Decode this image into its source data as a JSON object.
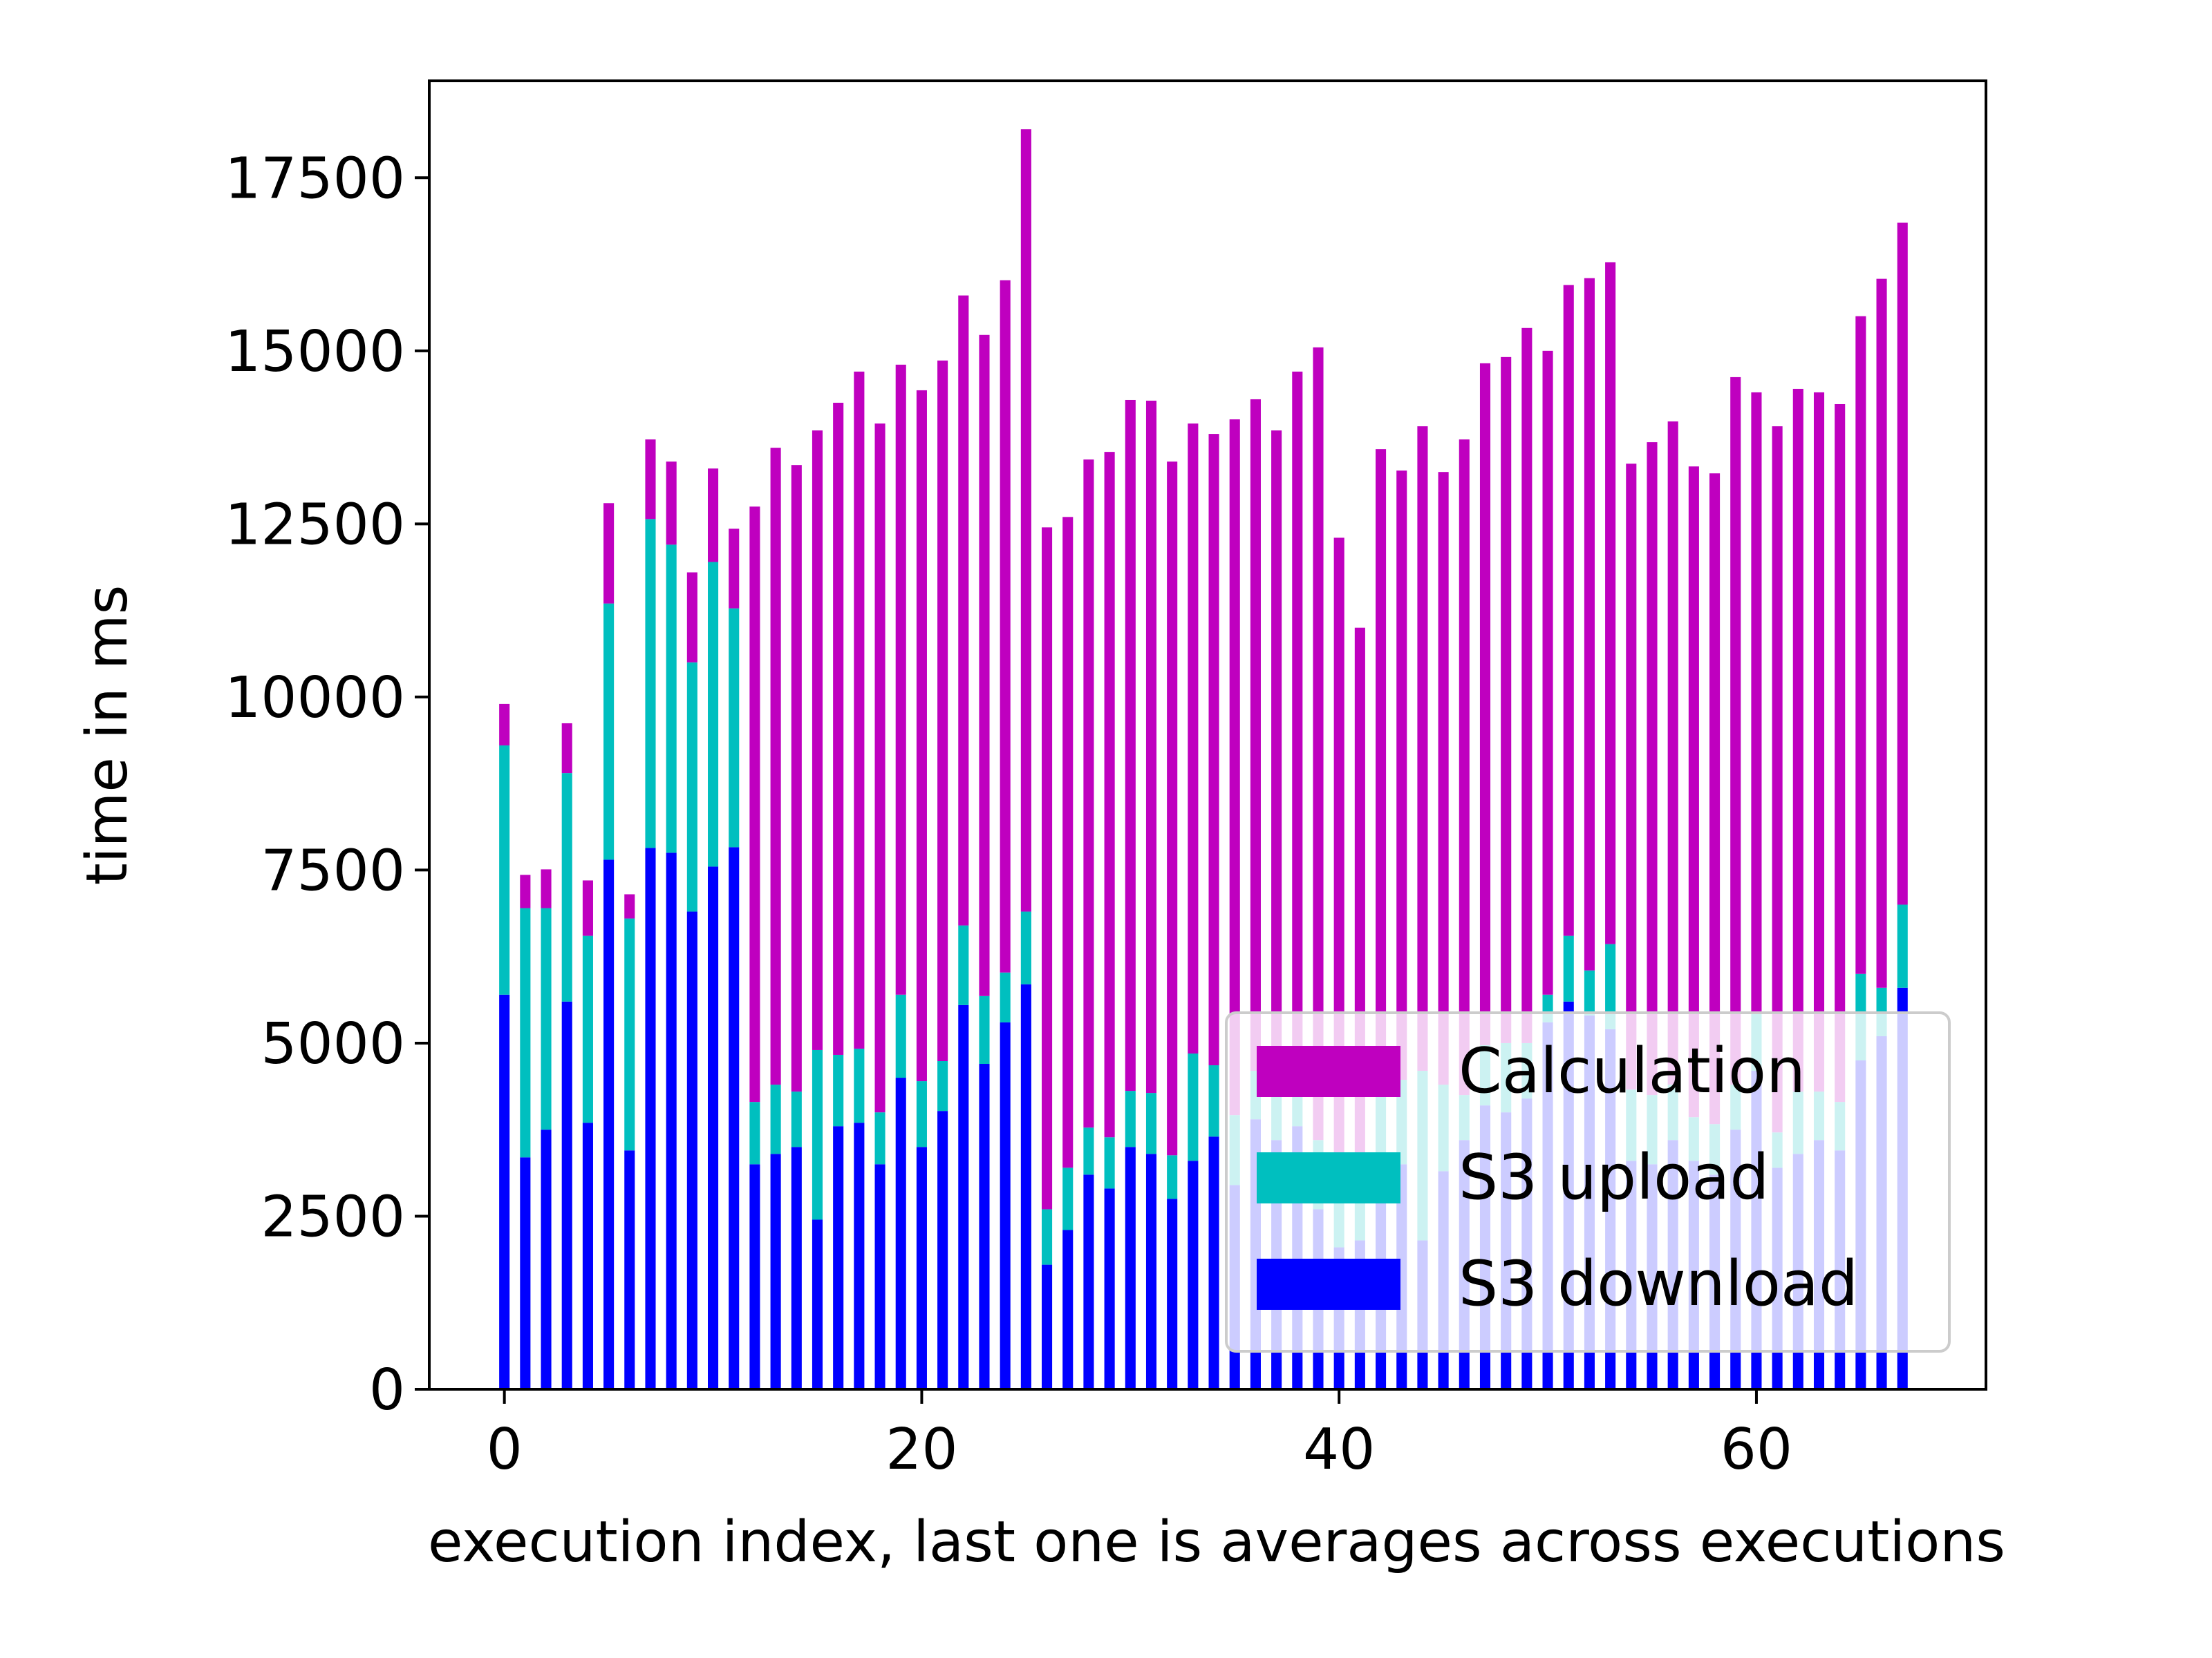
{
  "chart_data": {
    "type": "bar",
    "stacked": true,
    "title": "",
    "xlabel": "execution index, last one is averages across executions",
    "ylabel": "time in ms",
    "x": [
      0,
      1,
      2,
      3,
      4,
      5,
      6,
      7,
      8,
      9,
      10,
      11,
      12,
      13,
      14,
      15,
      16,
      17,
      18,
      19,
      20,
      21,
      22,
      23,
      24,
      25,
      26,
      27,
      28,
      29,
      30,
      31,
      32,
      33,
      34,
      35,
      36,
      37,
      38,
      39,
      40,
      41,
      42,
      43,
      44,
      45,
      46,
      47,
      48,
      49,
      50,
      51,
      52,
      53,
      54,
      55,
      56,
      57,
      58,
      59,
      60,
      61,
      62,
      63,
      64,
      65,
      66,
      67
    ],
    "xlim": [
      -3.6,
      71
    ],
    "ylim": [
      0,
      18900
    ],
    "x_ticks": [
      0,
      20,
      40,
      60
    ],
    "y_ticks": [
      0,
      2500,
      5000,
      7500,
      10000,
      12500,
      15000,
      17500
    ],
    "grid": false,
    "legend": {
      "position": "lower-right",
      "order": [
        "Calculation",
        "S3 upload",
        "S3 download"
      ]
    },
    "series": [
      {
        "name": "S3 download",
        "color": "#0000ff",
        "values": [
          5700,
          3350,
          3750,
          5600,
          3850,
          7650,
          3450,
          7820,
          7750,
          6900,
          7550,
          7830,
          3250,
          3400,
          3500,
          2450,
          3800,
          3850,
          3250,
          4500,
          3500,
          4020,
          5550,
          4700,
          5300,
          5850,
          1800,
          2300,
          3100,
          2900,
          3500,
          3400,
          2750,
          3300,
          3650,
          2950,
          3900,
          3600,
          3800,
          2600,
          2050,
          2150,
          3300,
          3250,
          2150,
          3150,
          3600,
          4100,
          4000,
          4200,
          5300,
          5600,
          5400,
          5200,
          3300,
          3250,
          3600,
          3300,
          3100,
          3750,
          4600,
          3200,
          3400,
          3600,
          3450,
          4750,
          5100,
          5800
        ]
      },
      {
        "name": "S3 upload",
        "color": "#00bfbf",
        "values": [
          3600,
          3600,
          3200,
          3300,
          2700,
          3700,
          3350,
          4750,
          4450,
          3600,
          4400,
          3450,
          900,
          1000,
          800,
          2450,
          1030,
          1070,
          750,
          1200,
          950,
          720,
          1150,
          980,
          720,
          1050,
          800,
          900,
          680,
          740,
          810,
          880,
          630,
          1550,
          1030,
          1010,
          700,
          900,
          750,
          1000,
          1050,
          1050,
          1180,
          1220,
          2450,
          1250,
          650,
          870,
          1000,
          800,
          400,
          950,
          650,
          1230,
          1030,
          1000,
          800,
          630,
          730,
          650,
          850,
          510,
          900,
          700,
          700,
          1250,
          700,
          1200
        ]
      },
      {
        "name": "Calculation",
        "color": "#bf00bf",
        "values": [
          600,
          480,
          560,
          720,
          800,
          1450,
          350,
          1150,
          1200,
          1300,
          1350,
          1150,
          8600,
          9200,
          9050,
          8950,
          9420,
          9780,
          9950,
          9100,
          9980,
          10120,
          9100,
          9550,
          10000,
          11300,
          9850,
          9400,
          9650,
          9900,
          9980,
          10000,
          10020,
          9100,
          9120,
          10050,
          9700,
          9350,
          10150,
          11450,
          9200,
          7800,
          9100,
          8800,
          9310,
          8850,
          9470,
          9850,
          9910,
          10330,
          9300,
          9400,
          10000,
          9850,
          9040,
          9430,
          9580,
          9400,
          9400,
          10220,
          8950,
          10200,
          10150,
          10100,
          10080,
          9500,
          10240,
          9850
        ]
      }
    ]
  }
}
